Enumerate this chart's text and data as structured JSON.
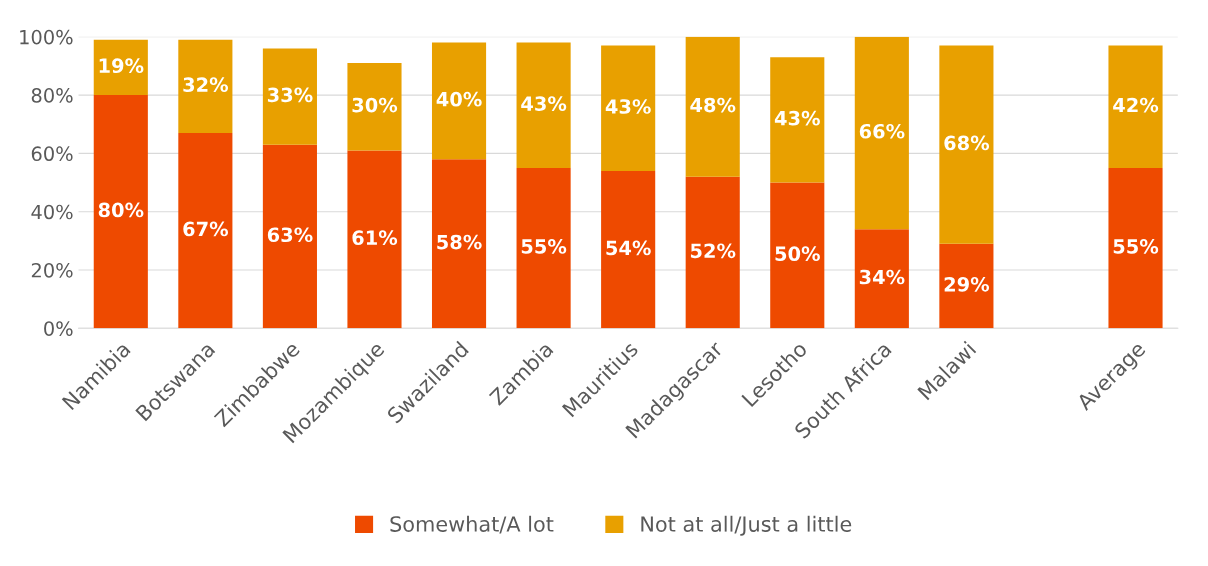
{
  "chart_data": {
    "type": "bar",
    "stacked": true,
    "categories": [
      "Namibia",
      "Botswana",
      "Zimbabwe",
      "Mozambique",
      "Swaziland",
      "Zambia",
      "Mauritius",
      "Madagascar",
      "Lesotho",
      "South Africa",
      "Malawi",
      null,
      "Average"
    ],
    "series": [
      {
        "name": "Somewhat/A lot",
        "color": "#ee4a00",
        "values": [
          80,
          67,
          63,
          61,
          58,
          55,
          54,
          52,
          50,
          34,
          29,
          null,
          55
        ],
        "value_labels": [
          "80%",
          "67%",
          "63%",
          "61%",
          "58%",
          "55%",
          "54%",
          "52%",
          "50%",
          "34%",
          "29%",
          null,
          "55%"
        ]
      },
      {
        "name": "Not at all/Just a little",
        "color": "#e8a000",
        "values": [
          19,
          32,
          33,
          30,
          40,
          43,
          43,
          48,
          43,
          66,
          68,
          null,
          42
        ],
        "value_labels": [
          "19%",
          "32%",
          "33%",
          "30%",
          "40%",
          "43%",
          "43%",
          "48%",
          "43%",
          "66%",
          "68%",
          null,
          "42%"
        ]
      }
    ],
    "ylim": [
      0,
      100
    ],
    "yticks": [
      {
        "value": 0,
        "label": "0%"
      },
      {
        "value": 20,
        "label": "20%"
      },
      {
        "value": 40,
        "label": "40%"
      },
      {
        "value": 60,
        "label": "60%"
      },
      {
        "value": 80,
        "label": "80%"
      },
      {
        "value": 100,
        "label": "100%"
      }
    ],
    "grid": "y",
    "legend": "bottom"
  }
}
